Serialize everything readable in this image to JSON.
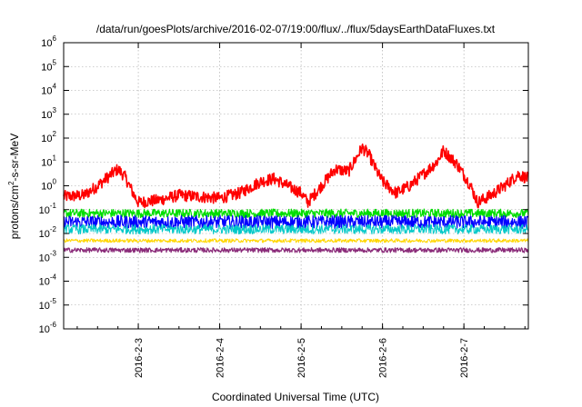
{
  "chart_data": {
    "type": "line",
    "title": "/data/run/goesPlots/archive/2016-02-07/19:00/flux/../flux/5daysEarthDataFluxes.txt",
    "xlabel": "Coordinated Universal Time (UTC)",
    "ylabel_parts": [
      "protons/cm",
      "2",
      "-s-sr-MeV"
    ],
    "y_scale": "log",
    "ylim": [
      1e-06,
      1000000.0
    ],
    "y_ticks": [
      {
        "base": "10",
        "exp": "-6",
        "value": 1e-06
      },
      {
        "base": "10",
        "exp": "-5",
        "value": 1e-05
      },
      {
        "base": "10",
        "exp": "-4",
        "value": 0.0001
      },
      {
        "base": "10",
        "exp": "-3",
        "value": 0.001
      },
      {
        "base": "10",
        "exp": "-2",
        "value": 0.01
      },
      {
        "base": "10",
        "exp": "-1",
        "value": 0.1
      },
      {
        "base": "10",
        "exp": "0",
        "value": 1
      },
      {
        "base": "10",
        "exp": "1",
        "value": 10
      },
      {
        "base": "10",
        "exp": "2",
        "value": 100
      },
      {
        "base": "10",
        "exp": "3",
        "value": 1000
      },
      {
        "base": "10",
        "exp": "4",
        "value": 10000
      },
      {
        "base": "10",
        "exp": "5",
        "value": 100000
      },
      {
        "base": "10",
        "exp": "6",
        "value": 1000000
      }
    ],
    "x_range": [
      "2016-02-02 02:00",
      "2016-02-07 19:00"
    ],
    "x_ticks": [
      "2016-2-3",
      "2016-2-4",
      "2016-2-5",
      "2016-2-6",
      "2016-2-7"
    ],
    "grid": true,
    "series": [
      {
        "color": "#ff0000",
        "x": [
          "2016-02-02 02:00",
          "2016-02-02 08:00",
          "2016-02-02 12:00",
          "2016-02-02 16:00",
          "2016-02-02 18:00",
          "2016-02-02 20:00",
          "2016-02-02 23:00",
          "2016-02-03 00:00",
          "2016-02-03 06:00",
          "2016-02-03 12:00",
          "2016-02-03 18:00",
          "2016-02-04 00:00",
          "2016-02-04 06:00",
          "2016-02-04 12:00",
          "2016-02-04 16:00",
          "2016-02-04 20:00",
          "2016-02-05 00:00",
          "2016-02-05 02:00",
          "2016-02-05 06:00",
          "2016-02-05 10:00",
          "2016-02-05 14:00",
          "2016-02-05 18:00",
          "2016-02-05 20:00",
          "2016-02-05 22:00",
          "2016-02-06 00:00",
          "2016-02-06 04:00",
          "2016-02-06 08:00",
          "2016-02-06 12:00",
          "2016-02-06 16:00",
          "2016-02-06 18:00",
          "2016-02-06 22:00",
          "2016-02-07 02:00",
          "2016-02-07 04:00",
          "2016-02-07 08:00",
          "2016-02-07 12:00",
          "2016-02-07 16:00",
          "2016-02-07 19:00"
        ],
        "y": [
          0.35,
          0.4,
          1,
          3,
          5,
          2.5,
          0.35,
          0.2,
          0.25,
          0.4,
          0.35,
          0.3,
          0.5,
          1.5,
          2,
          1,
          0.5,
          0.2,
          1,
          5,
          4,
          40,
          20,
          5,
          1.5,
          0.5,
          1,
          3,
          10,
          30,
          8,
          1,
          0.2,
          0.4,
          1,
          3,
          2
        ]
      },
      {
        "color": "#00dd00",
        "x": [
          "2016-02-02 02:00",
          "2016-02-03 00:00",
          "2016-02-04 00:00",
          "2016-02-05 00:00",
          "2016-02-06 00:00",
          "2016-02-07 00:00",
          "2016-02-07 19:00"
        ],
        "y": [
          0.07,
          0.07,
          0.07,
          0.07,
          0.07,
          0.07,
          0.07
        ]
      },
      {
        "color": "#0000ff",
        "x": [
          "2016-02-02 02:00",
          "2016-02-03 00:00",
          "2016-02-04 00:00",
          "2016-02-05 00:00",
          "2016-02-06 00:00",
          "2016-02-07 00:00",
          "2016-02-07 19:00"
        ],
        "y": [
          0.03,
          0.03,
          0.03,
          0.03,
          0.03,
          0.03,
          0.03
        ]
      },
      {
        "color": "#00c8c8",
        "x": [
          "2016-02-02 02:00",
          "2016-02-03 00:00",
          "2016-02-04 00:00",
          "2016-02-05 00:00",
          "2016-02-06 00:00",
          "2016-02-07 00:00",
          "2016-02-07 19:00"
        ],
        "y": [
          0.015,
          0.015,
          0.015,
          0.015,
          0.015,
          0.015,
          0.015
        ]
      },
      {
        "color": "#ffd700",
        "x": [
          "2016-02-02 02:00",
          "2016-02-03 00:00",
          "2016-02-04 00:00",
          "2016-02-05 00:00",
          "2016-02-06 00:00",
          "2016-02-07 00:00",
          "2016-02-07 19:00"
        ],
        "y": [
          0.005,
          0.005,
          0.005,
          0.005,
          0.005,
          0.005,
          0.005
        ]
      },
      {
        "color": "#8b2c7a",
        "x": [
          "2016-02-02 02:00",
          "2016-02-03 00:00",
          "2016-02-04 00:00",
          "2016-02-05 00:00",
          "2016-02-06 00:00",
          "2016-02-07 00:00",
          "2016-02-07 19:00"
        ],
        "y": [
          0.002,
          0.002,
          0.002,
          0.002,
          0.002,
          0.002,
          0.002
        ]
      }
    ]
  }
}
